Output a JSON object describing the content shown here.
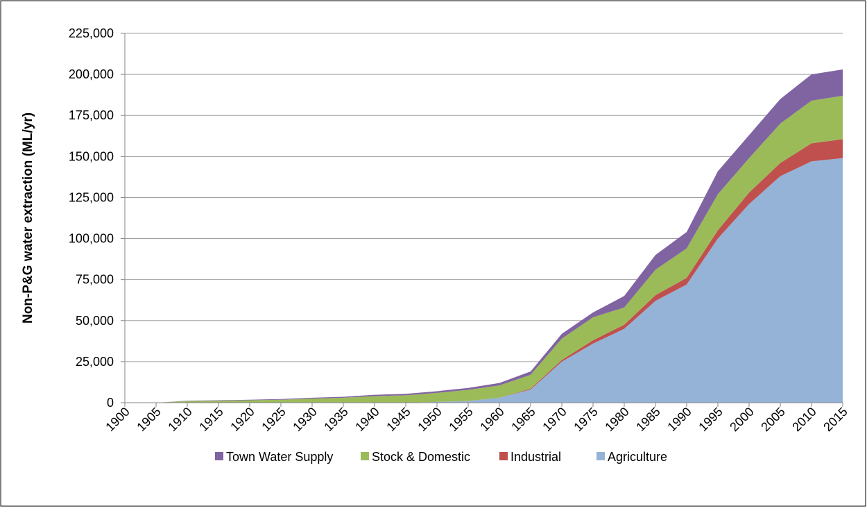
{
  "chart_data": {
    "type": "stacked-area",
    "y_label": "Non-P&G water extraction (ML/yr)",
    "x": [
      1900,
      1905,
      1910,
      1915,
      1920,
      1925,
      1930,
      1935,
      1940,
      1945,
      1950,
      1955,
      1960,
      1965,
      1970,
      1975,
      1980,
      1985,
      1990,
      1995,
      2000,
      2005,
      2010,
      2015
    ],
    "series": [
      {
        "name": "Agriculture",
        "color": "#95b3d7",
        "values": [
          0,
          0,
          0,
          0,
          0,
          0,
          0,
          0,
          0,
          0,
          500,
          1000,
          3000,
          8000,
          25000,
          36000,
          45000,
          62000,
          72000,
          100000,
          121000,
          138000,
          147000,
          149000
        ]
      },
      {
        "name": "Industrial",
        "color": "#c0504d",
        "values": [
          0,
          0,
          0,
          0,
          0,
          0,
          0,
          0,
          0,
          0,
          0,
          0,
          0,
          500,
          1000,
          2000,
          2500,
          3500,
          4000,
          5000,
          7000,
          8000,
          11000,
          11500
        ]
      },
      {
        "name": "Stock & Domestic",
        "color": "#9bbb59",
        "values": [
          0,
          0,
          1000,
          1200,
          1500,
          1800,
          2500,
          3000,
          4000,
          4500,
          5500,
          6800,
          7500,
          8500,
          13000,
          14000,
          10500,
          15500,
          18000,
          22000,
          21000,
          24000,
          26000,
          26500
        ]
      },
      {
        "name": "Town Water Supply",
        "color": "#8064a2",
        "values": [
          0,
          0,
          200,
          300,
          300,
          400,
          500,
          600,
          800,
          900,
          1000,
          1200,
          1500,
          2000,
          3000,
          3000,
          7000,
          9000,
          10000,
          14000,
          14000,
          15000,
          16000,
          16000
        ]
      }
    ],
    "legend_order": [
      3,
      2,
      1,
      0
    ],
    "xlim": [
      1900,
      2015
    ],
    "xticks": [
      1900,
      1905,
      1910,
      1915,
      1920,
      1925,
      1930,
      1935,
      1940,
      1945,
      1950,
      1955,
      1960,
      1965,
      1970,
      1975,
      1980,
      1985,
      1990,
      1995,
      2000,
      2005,
      2010,
      2015
    ],
    "ylim": [
      0,
      225000
    ],
    "yticks": [
      0,
      {
        "value": 25000,
        "label": "25,000"
      },
      {
        "value": 50000,
        "label": "50,000"
      },
      {
        "value": 75000,
        "label": "75,000"
      },
      {
        "value": 100000,
        "label": "100,000"
      },
      {
        "value": 125000,
        "label": "125,000"
      },
      {
        "value": 150000,
        "label": "150,000"
      },
      {
        "value": 175000,
        "label": "175,000"
      },
      {
        "value": 200000,
        "label": "200,000"
      },
      {
        "value": 225000,
        "label": "225,000"
      }
    ],
    "grid": true
  }
}
